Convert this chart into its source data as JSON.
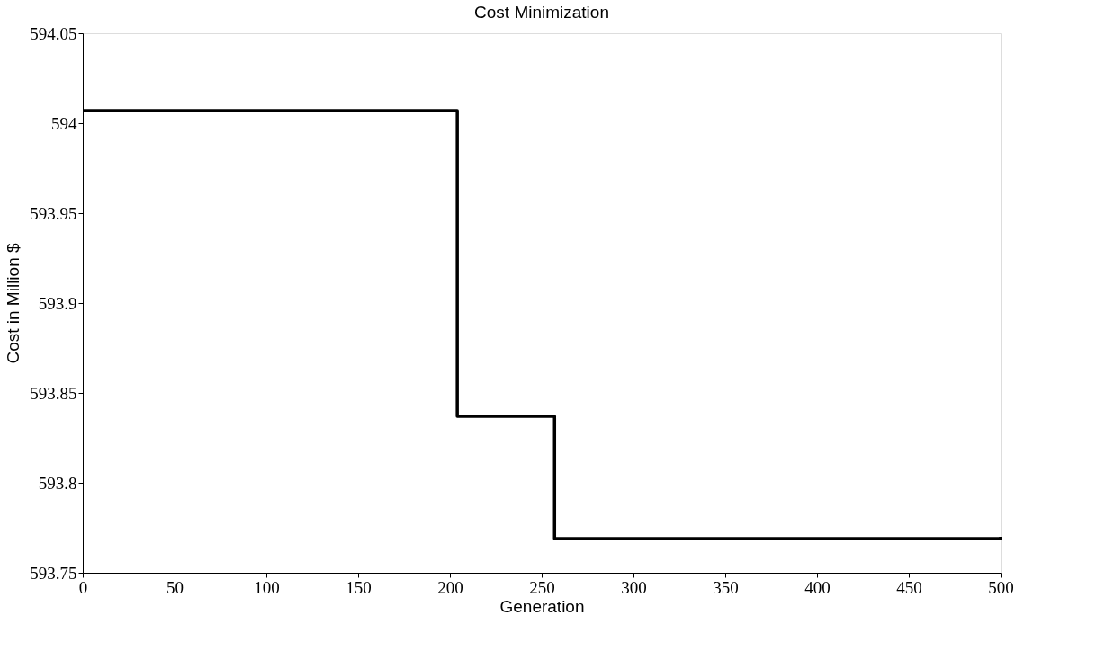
{
  "chart_data": {
    "type": "step",
    "title": "Cost Minimization",
    "xlabel": "Generation",
    "ylabel": "Cost in Million $",
    "x": [
      0,
      204,
      257,
      500
    ],
    "series": [
      {
        "color": "#000000",
        "values": [
          594.007,
          593.837,
          593.769,
          593.77
        ]
      }
    ],
    "xlim": [
      0,
      500
    ],
    "xticks": [
      0,
      50,
      100,
      150,
      200,
      250,
      300,
      350,
      400,
      450,
      500
    ],
    "ylim": [
      593.75,
      594.05
    ],
    "yticks": [
      593.75,
      593.8,
      593.85,
      593.9,
      593.95,
      594,
      594.05
    ],
    "grid": false,
    "legend": false,
    "marker": "none",
    "line_style": "solid"
  }
}
